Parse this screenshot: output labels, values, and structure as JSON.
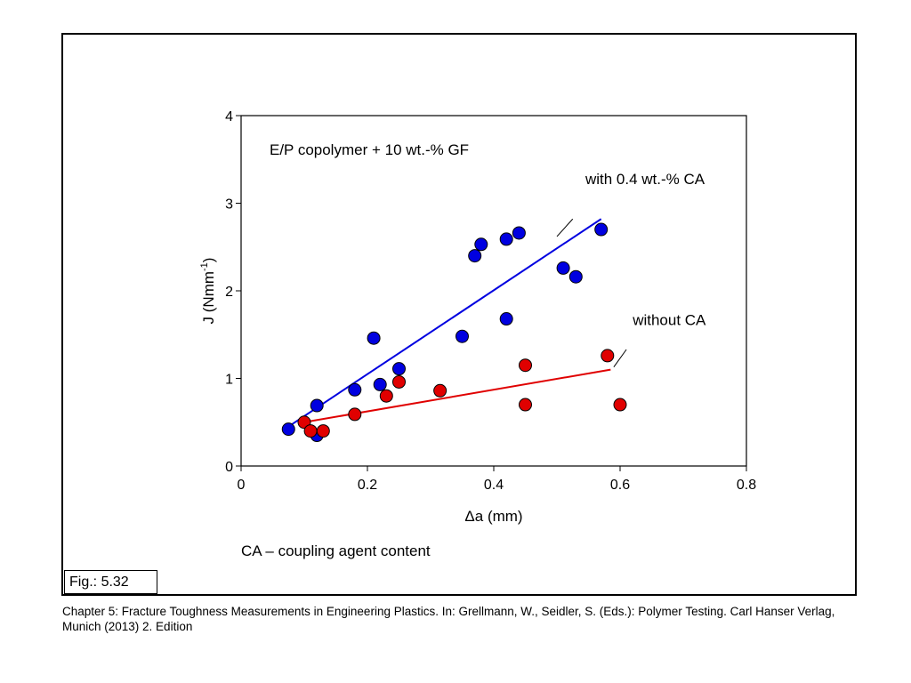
{
  "figure_label": "Fig.: 5.32",
  "caption": "Chapter 5: Fracture Toughness Measurements in Engineering Plastics. In: Grellmann, W., Seidler, S. (Eds.): Polymer Testing. Carl Hanser Verlag, Munich (2013) 2. Edition",
  "note": "CA – coupling agent content",
  "chart_data": {
    "type": "scatter",
    "title": "E/P copolymer + 10 wt.-% GF",
    "xlabel": "Δa (mm)",
    "ylabel_main": "J  (Nmm",
    "ylabel_sup": "-1",
    "ylabel_close": ")",
    "xlim": [
      0,
      0.8
    ],
    "ylim": [
      0,
      4
    ],
    "x_ticks": [
      0,
      0.2,
      0.4,
      0.6,
      0.8
    ],
    "x_tick_labels": [
      "0",
      "0.2",
      "0.4",
      "0.6",
      "0.8"
    ],
    "y_ticks": [
      0,
      1,
      2,
      3,
      4
    ],
    "y_tick_labels": [
      "0",
      "1",
      "2",
      "3",
      "4"
    ],
    "grid": false,
    "series": [
      {
        "name": "with 0.4 wt.-% CA",
        "color": "#0000e0",
        "points": [
          [
            0.075,
            0.42
          ],
          [
            0.12,
            0.35
          ],
          [
            0.12,
            0.69
          ],
          [
            0.18,
            0.87
          ],
          [
            0.21,
            1.46
          ],
          [
            0.22,
            0.93
          ],
          [
            0.25,
            1.11
          ],
          [
            0.35,
            1.48
          ],
          [
            0.37,
            2.4
          ],
          [
            0.38,
            2.53
          ],
          [
            0.42,
            2.59
          ],
          [
            0.42,
            1.68
          ],
          [
            0.44,
            2.66
          ],
          [
            0.51,
            2.26
          ],
          [
            0.53,
            2.16
          ],
          [
            0.57,
            2.7
          ]
        ],
        "fit": [
          [
            0.075,
            0.45
          ],
          [
            0.57,
            2.82
          ]
        ]
      },
      {
        "name": "without CA",
        "color": "#e00000",
        "points": [
          [
            0.1,
            0.5
          ],
          [
            0.11,
            0.4
          ],
          [
            0.13,
            0.4
          ],
          [
            0.18,
            0.59
          ],
          [
            0.23,
            0.8
          ],
          [
            0.25,
            0.96
          ],
          [
            0.315,
            0.86
          ],
          [
            0.45,
            1.15
          ],
          [
            0.45,
            0.7
          ],
          [
            0.58,
            1.26
          ],
          [
            0.6,
            0.7
          ]
        ],
        "fit": [
          [
            0.1,
            0.5
          ],
          [
            0.585,
            1.1
          ]
        ]
      }
    ],
    "annotations": [
      {
        "series": 0,
        "text": "with 0.4 wt.-% CA",
        "text_at": [
          0.545,
          3.22
        ],
        "line_from": [
          0.525,
          2.82
        ],
        "line_to": [
          0.5,
          2.62
        ]
      },
      {
        "series": 1,
        "text": "without CA",
        "text_at": [
          0.62,
          1.61
        ],
        "line_from": [
          0.61,
          1.33
        ],
        "line_to": [
          0.59,
          1.13
        ]
      }
    ]
  }
}
